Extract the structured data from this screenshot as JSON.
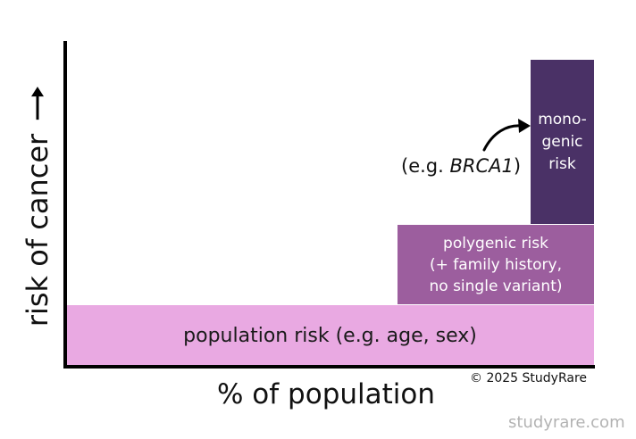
{
  "diagram": {
    "y_axis_label": "risk of cancer",
    "x_axis_label": "% of population",
    "blocks": {
      "population": {
        "label": "population risk (e.g. age, sex)",
        "color": "#e9a9e2"
      },
      "polygenic": {
        "lines": [
          "polygenic risk",
          "(+ family history,",
          "no single variant)"
        ],
        "color": "#9c5e9e"
      },
      "monogenic": {
        "lines": [
          "mono-",
          "genic",
          "risk"
        ],
        "color": "#4a3166"
      }
    },
    "example": {
      "prefix": "(e.g. ",
      "gene": "BRCA1",
      "suffix": ")"
    },
    "copyright": "© 2025 StudyRare",
    "website": "studyrare.com"
  }
}
